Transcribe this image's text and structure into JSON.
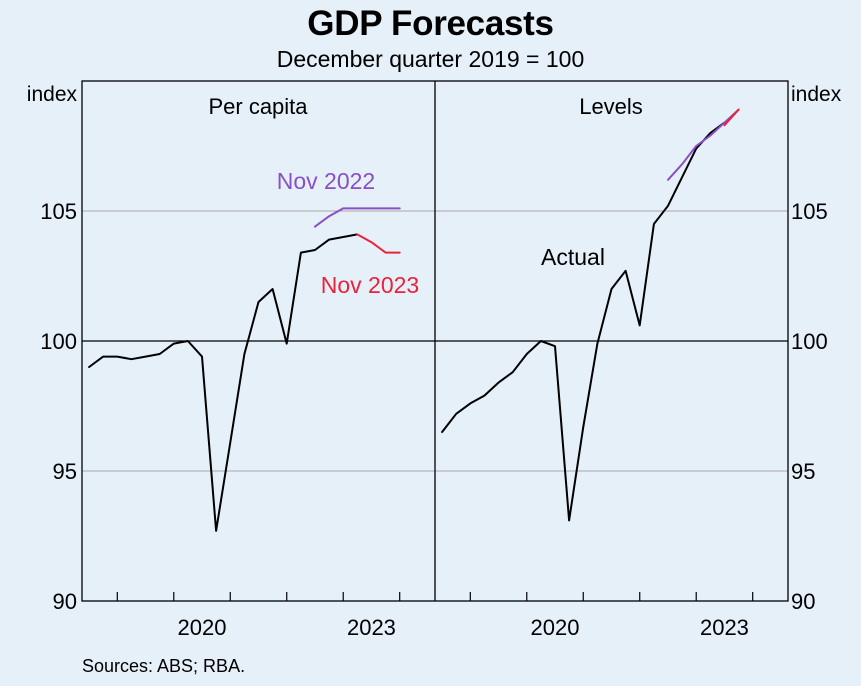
{
  "header": {
    "title": "GDP Forecasts",
    "subtitle": "December quarter 2019 = 100"
  },
  "footer": {
    "sources": "Sources: ABS; RBA."
  },
  "colors": {
    "background": "#e6f0f9",
    "actual": "#000000",
    "nov2022": "#8a4fc4",
    "nov2023": "#e8233b",
    "gridline": "#a9a9a9"
  },
  "chart_data": [
    {
      "type": "line",
      "title": "Per capita",
      "ylabel": "index",
      "ylim": [
        90,
        110
      ],
      "yticks": [
        90,
        95,
        100,
        105
      ],
      "xticks": [
        2020,
        2023
      ],
      "xlim": [
        2018.375,
        2024.625
      ],
      "series": [
        {
          "name": "Actual",
          "color": "#000000",
          "x": [
            2018.5,
            2018.75,
            2019.0,
            2019.25,
            2019.5,
            2019.75,
            2020.0,
            2020.25,
            2020.5,
            2020.75,
            2021.0,
            2021.25,
            2021.5,
            2021.75,
            2022.0,
            2022.25,
            2022.5,
            2022.75,
            2023.0,
            2023.25
          ],
          "values": [
            99.0,
            99.4,
            99.4,
            99.3,
            99.4,
            99.5,
            99.9,
            100.0,
            99.4,
            92.7,
            96.1,
            99.5,
            101.5,
            102.0,
            99.9,
            103.4,
            103.5,
            103.9,
            104.0,
            104.1
          ]
        },
        {
          "name": "Nov 2022",
          "color": "#8a4fc4",
          "x": [
            2022.5,
            2022.75,
            2023.0,
            2023.25,
            2023.5,
            2023.75,
            2024.0
          ],
          "values": [
            104.4,
            104.8,
            105.1,
            105.1,
            105.1,
            105.1,
            105.1
          ]
        },
        {
          "name": "Nov 2023",
          "color": "#e8233b",
          "x": [
            2023.25,
            2023.5,
            2023.75,
            2024.0
          ],
          "values": [
            104.1,
            103.8,
            103.4,
            103.4
          ]
        }
      ],
      "annotations": [
        "Nov 2022",
        "Nov 2023"
      ]
    },
    {
      "type": "line",
      "title": "Levels",
      "ylabel": "index",
      "ylim": [
        90,
        110
      ],
      "yticks": [
        90,
        95,
        100,
        105
      ],
      "xticks": [
        2020,
        2023
      ],
      "xlim": [
        2018.375,
        2024.625
      ],
      "series": [
        {
          "name": "Actual",
          "color": "#000000",
          "x": [
            2018.5,
            2018.75,
            2019.0,
            2019.25,
            2019.5,
            2019.75,
            2020.0,
            2020.25,
            2020.5,
            2020.75,
            2021.0,
            2021.25,
            2021.5,
            2021.75,
            2022.0,
            2022.25,
            2022.5,
            2022.75,
            2023.0,
            2023.25,
            2023.5
          ],
          "values": [
            96.5,
            97.2,
            97.6,
            97.9,
            98.4,
            98.8,
            99.5,
            100.0,
            99.8,
            93.1,
            96.7,
            99.9,
            102.0,
            102.7,
            100.6,
            104.5,
            105.2,
            106.3,
            107.4,
            108.0,
            108.4
          ]
        },
        {
          "name": "Nov 2022",
          "color": "#8a4fc4",
          "x": [
            2022.5,
            2022.75,
            2023.0,
            2023.25,
            2023.5,
            2023.75
          ],
          "values": [
            106.2,
            106.8,
            107.5,
            107.9,
            108.4,
            108.9
          ]
        },
        {
          "name": "Nov 2023",
          "color": "#e8233b",
          "x": [
            2023.5,
            2023.75
          ],
          "values": [
            108.3,
            108.9
          ]
        }
      ],
      "annotations": [
        "Actual"
      ]
    }
  ],
  "labels": {
    "ylabel_left": "index",
    "ylabel_right": "index",
    "panel_left_title": "Per capita",
    "panel_right_title": "Levels",
    "nov2022": "Nov 2022",
    "nov2023": "Nov 2023",
    "actual": "Actual"
  }
}
